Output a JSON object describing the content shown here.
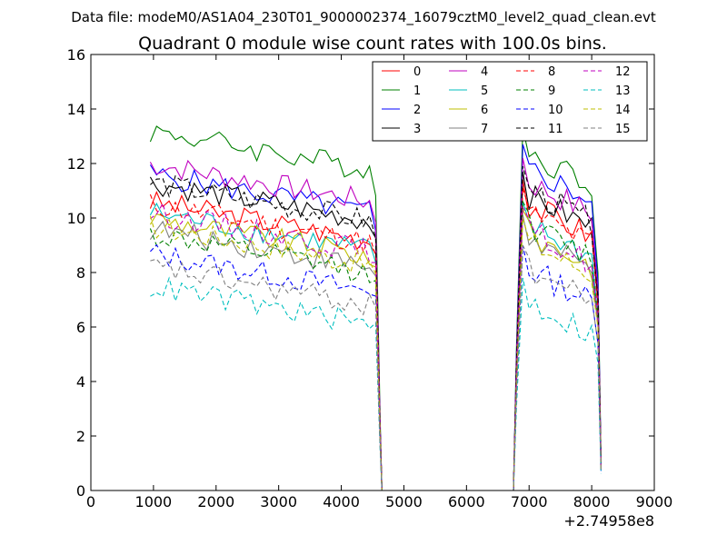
{
  "chart_data": {
    "type": "line",
    "supertitle": "Data file: modeM0/AS1A04_230T01_9000002374_16079cztM0_level2_quad_clean.evt",
    "title": "Quadrant 0 module wise count rates with 100.0s bins.",
    "xlabel": "",
    "ylabel": "",
    "x_offset_label": "+2.74958e8",
    "xlim": [
      0,
      9000
    ],
    "ylim": [
      0,
      16
    ],
    "xticks": [
      0,
      1000,
      2000,
      3000,
      4000,
      5000,
      6000,
      7000,
      8000,
      9000
    ],
    "yticks": [
      0,
      2,
      4,
      6,
      8,
      10,
      12,
      14,
      16
    ],
    "legend_position": "top-right",
    "legend_columns": 4,
    "series": [
      {
        "name": "0",
        "color": "#ff0000",
        "style": "solid",
        "start_level": 10.6,
        "high_level": 11.4
      },
      {
        "name": "1",
        "color": "#008000",
        "style": "solid",
        "start_level": 13.2,
        "high_level": 13.3
      },
      {
        "name": "2",
        "color": "#0000ff",
        "style": "solid",
        "start_level": 11.6,
        "high_level": 12.7
      },
      {
        "name": "3",
        "color": "#000000",
        "style": "solid",
        "start_level": 11.3,
        "high_level": 11.7
      },
      {
        "name": "4",
        "color": "#bf00bf",
        "style": "solid",
        "start_level": 12.0,
        "high_level": 12.2
      },
      {
        "name": "5",
        "color": "#00bfbf",
        "style": "solid",
        "start_level": 10.2,
        "high_level": 10.6
      },
      {
        "name": "6",
        "color": "#bfbf00",
        "style": "solid",
        "start_level": 10.0,
        "high_level": 10.3
      },
      {
        "name": "7",
        "color": "#808080",
        "style": "solid",
        "start_level": 9.6,
        "high_level": 10.1
      },
      {
        "name": "8",
        "color": "#ff0000",
        "style": "dashed",
        "start_level": 10.5,
        "high_level": 11.1
      },
      {
        "name": "9",
        "color": "#008000",
        "style": "dashed",
        "start_level": 9.4,
        "high_level": 10.6
      },
      {
        "name": "10",
        "color": "#0000ff",
        "style": "dashed",
        "start_level": 8.7,
        "high_level": 9.0
      },
      {
        "name": "11",
        "color": "#000000",
        "style": "dashed",
        "start_level": 11.3,
        "high_level": 11.9
      },
      {
        "name": "12",
        "color": "#bf00bf",
        "style": "dashed",
        "start_level": 10.2,
        "high_level": 10.4
      },
      {
        "name": "13",
        "color": "#00bfbf",
        "style": "dashed",
        "start_level": 7.5,
        "high_level": 7.8
      },
      {
        "name": "14",
        "color": "#bfbf00",
        "style": "dashed",
        "start_level": 9.7,
        "high_level": 10.0
      },
      {
        "name": "15",
        "color": "#808080",
        "style": "dashed",
        "start_level": 8.2,
        "high_level": 9.0
      }
    ],
    "segments": [
      {
        "x_start": 950,
        "x_end": 4450
      },
      {
        "x_start": 4550,
        "x_end": 4650
      },
      {
        "x_start": 4650,
        "x_end": 6750
      },
      {
        "x_start": 6750,
        "x_end": 6950
      },
      {
        "x_start": 6950,
        "x_end": 8150
      }
    ]
  }
}
